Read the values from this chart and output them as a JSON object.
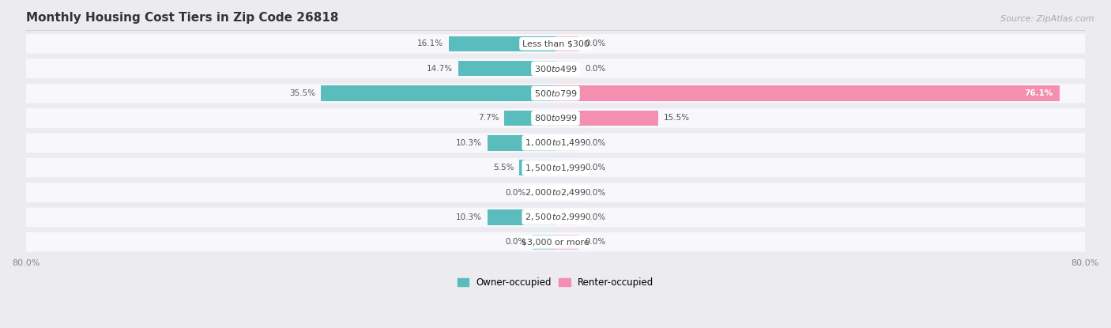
{
  "title": "Monthly Housing Cost Tiers in Zip Code 26818",
  "source": "Source: ZipAtlas.com",
  "categories": [
    "Less than $300",
    "$300 to $499",
    "$500 to $799",
    "$800 to $999",
    "$1,000 to $1,499",
    "$1,500 to $1,999",
    "$2,000 to $2,499",
    "$2,500 to $2,999",
    "$3,000 or more"
  ],
  "owner_values": [
    16.1,
    14.7,
    35.5,
    7.7,
    10.3,
    5.5,
    0.0,
    10.3,
    0.0
  ],
  "renter_values": [
    0.0,
    0.0,
    76.1,
    15.5,
    0.0,
    0.0,
    0.0,
    0.0,
    0.0
  ],
  "owner_color": "#5bbcbe",
  "renter_color": "#f48fb0",
  "background_color": "#ebebf0",
  "bar_background": "#f8f8fc",
  "row_gap_color": "#ebebf0",
  "xlim": 80.0,
  "title_fontsize": 11,
  "source_fontsize": 8,
  "label_fontsize": 8,
  "bar_label_fontsize": 7.5,
  "legend_fontsize": 8.5,
  "axis_label_fontsize": 8
}
